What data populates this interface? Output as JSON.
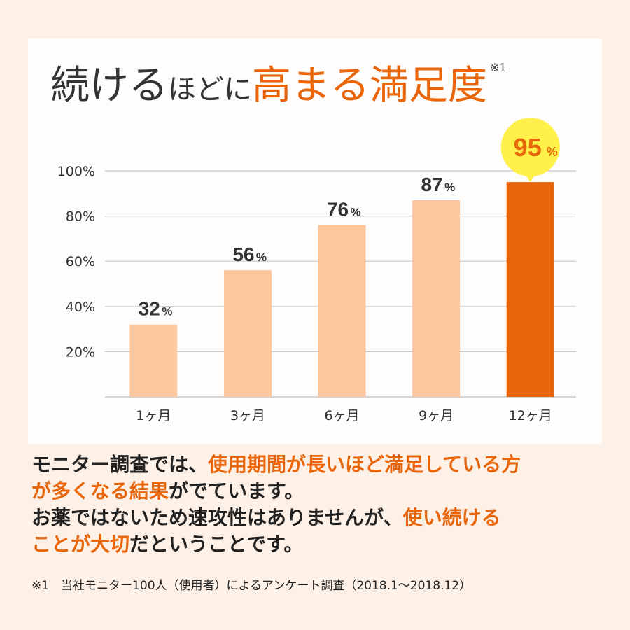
{
  "title": {
    "part1": "続ける",
    "part2": "ほどに",
    "part3": "高まる満足度",
    "note_mark": "※1"
  },
  "chart_data": {
    "type": "bar",
    "categories": [
      "1ヶ月",
      "3ヶ月",
      "6ヶ月",
      "9ヶ月",
      "12ヶ月"
    ],
    "values": [
      32,
      56,
      76,
      87,
      95
    ],
    "value_labels": [
      "32",
      "56",
      "76",
      "87",
      "95"
    ],
    "unit": "%",
    "yticks": [
      "20%",
      "40%",
      "60%",
      "80%",
      "100%"
    ],
    "ylim": [
      0,
      100
    ],
    "grid": true,
    "colors": {
      "bar": "#fcc79f",
      "highlight_bar": "#e8650a",
      "highlight_bubble": "#fff04a",
      "label": "#333333",
      "highlight_label": "#e8650a",
      "grid": "#c8c8c8"
    },
    "highlight_index": 4
  },
  "body": {
    "l1a": "モニター調査では、",
    "l1b": "使用期間が長いほど満足している方",
    "l2a": "が多くなる結果",
    "l2b": "がでています。",
    "l3a": "お薬ではないため速攻性はありませんが、",
    "l3b": "使い続ける",
    "l4a": "ことが大切",
    "l4b": "だということです。"
  },
  "footnote": "※1　当社モニター100人（使用者）によるアンケート調査（2018.1～2018.12）"
}
